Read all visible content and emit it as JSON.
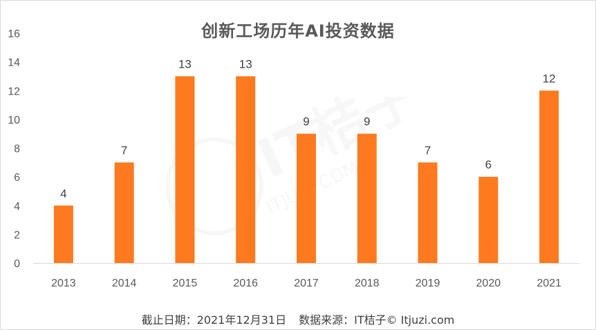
{
  "chart_data": {
    "type": "bar",
    "title": "创新工场历年AI投资数据",
    "categories": [
      "2013",
      "2014",
      "2015",
      "2016",
      "2017",
      "2018",
      "2019",
      "2020",
      "2021"
    ],
    "values": [
      4,
      7,
      13,
      13,
      9,
      9,
      7,
      6,
      12
    ],
    "ylim": [
      0,
      16
    ],
    "yticks": [
      0,
      2,
      4,
      6,
      8,
      10,
      12,
      14,
      16
    ],
    "xlabel": "",
    "ylabel": "",
    "data_labels": true,
    "grid": false,
    "bar_color": "#FF7A1F"
  },
  "footer": {
    "date_note": "截止日期：2021年12月31日",
    "source_note": "数据来源：IT桔子© Itjuzi.com"
  },
  "watermark": {
    "brand": "IT桔子",
    "url": "ITJUZI.COM"
  }
}
